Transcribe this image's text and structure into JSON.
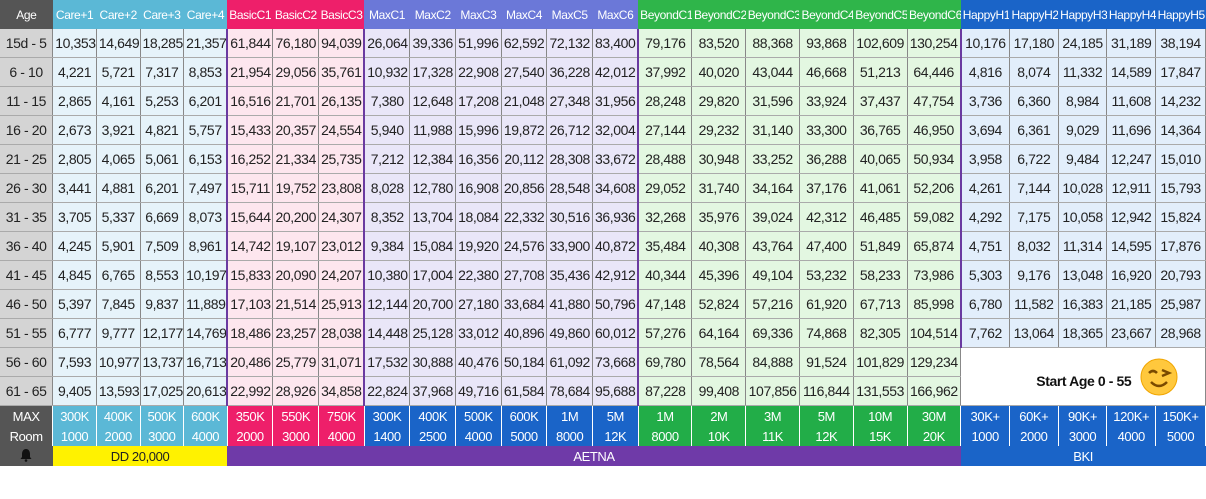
{
  "columns": [
    {
      "label": "Age",
      "group": "age"
    },
    {
      "label": "Care+1",
      "group": "care"
    },
    {
      "label": "Care+2",
      "group": "care"
    },
    {
      "label": "Care+3",
      "group": "care"
    },
    {
      "label": "Care+4",
      "group": "care"
    },
    {
      "label": "BasicC1",
      "group": "basic"
    },
    {
      "label": "BasicC2",
      "group": "basic"
    },
    {
      "label": "BasicC3",
      "group": "basic"
    },
    {
      "label": "MaxC1",
      "group": "max"
    },
    {
      "label": "MaxC2",
      "group": "max"
    },
    {
      "label": "MaxC3",
      "group": "max"
    },
    {
      "label": "MaxC4",
      "group": "max"
    },
    {
      "label": "MaxC5",
      "group": "max"
    },
    {
      "label": "MaxC6",
      "group": "max"
    },
    {
      "label": "BeyondC1",
      "group": "beyond"
    },
    {
      "label": "BeyondC2",
      "group": "beyond"
    },
    {
      "label": "BeyondC3",
      "group": "beyond"
    },
    {
      "label": "BeyondC4",
      "group": "beyond"
    },
    {
      "label": "BeyondC5",
      "group": "beyond"
    },
    {
      "label": "BeyondC6",
      "group": "beyond"
    },
    {
      "label": "HappyH1",
      "group": "happy"
    },
    {
      "label": "HappyH2",
      "group": "happy"
    },
    {
      "label": "HappyH3",
      "group": "happy"
    },
    {
      "label": "HappyH4",
      "group": "happy"
    },
    {
      "label": "HappyH5",
      "group": "happy"
    }
  ],
  "rows": [
    [
      "15d - 5",
      "10,353",
      "14,649",
      "18,285",
      "21,357",
      "61,844",
      "76,180",
      "94,039",
      "26,064",
      "39,336",
      "51,996",
      "62,592",
      "72,132",
      "83,400",
      "79,176",
      "83,520",
      "88,368",
      "93,868",
      "102,609",
      "130,254",
      "10,176",
      "17,180",
      "24,185",
      "31,189",
      "38,194"
    ],
    [
      "6 - 10",
      "4,221",
      "5,721",
      "7,317",
      "8,853",
      "21,954",
      "29,056",
      "35,761",
      "10,932",
      "17,328",
      "22,908",
      "27,540",
      "36,228",
      "42,012",
      "37,992",
      "40,020",
      "43,044",
      "46,668",
      "51,213",
      "64,446",
      "4,816",
      "8,074",
      "11,332",
      "14,589",
      "17,847"
    ],
    [
      "11 - 15",
      "2,865",
      "4,161",
      "5,253",
      "6,201",
      "16,516",
      "21,701",
      "26,135",
      "7,380",
      "12,648",
      "17,208",
      "21,048",
      "27,348",
      "31,956",
      "28,248",
      "29,820",
      "31,596",
      "33,924",
      "37,437",
      "47,754",
      "3,736",
      "6,360",
      "8,984",
      "11,608",
      "14,232"
    ],
    [
      "16 - 20",
      "2,673",
      "3,921",
      "4,821",
      "5,757",
      "15,433",
      "20,357",
      "24,554",
      "5,940",
      "11,988",
      "15,996",
      "19,872",
      "26,712",
      "32,004",
      "27,144",
      "29,232",
      "31,140",
      "33,300",
      "36,765",
      "46,950",
      "3,694",
      "6,361",
      "9,029",
      "11,696",
      "14,364"
    ],
    [
      "21 - 25",
      "2,805",
      "4,065",
      "5,061",
      "6,153",
      "16,252",
      "21,334",
      "25,735",
      "7,212",
      "12,384",
      "16,356",
      "20,112",
      "28,308",
      "33,672",
      "28,488",
      "30,948",
      "33,252",
      "36,288",
      "40,065",
      "50,934",
      "3,958",
      "6,722",
      "9,484",
      "12,247",
      "15,010"
    ],
    [
      "26 - 30",
      "3,441",
      "4,881",
      "6,201",
      "7,497",
      "15,711",
      "19,752",
      "23,808",
      "8,028",
      "12,780",
      "16,908",
      "20,856",
      "28,548",
      "34,608",
      "29,052",
      "31,740",
      "34,164",
      "37,176",
      "41,061",
      "52,206",
      "4,261",
      "7,144",
      "10,028",
      "12,911",
      "15,793"
    ],
    [
      "31 - 35",
      "3,705",
      "5,337",
      "6,669",
      "8,073",
      "15,644",
      "20,200",
      "24,307",
      "8,352",
      "13,704",
      "18,084",
      "22,332",
      "30,516",
      "36,936",
      "32,268",
      "35,976",
      "39,024",
      "42,312",
      "46,485",
      "59,082",
      "4,292",
      "7,175",
      "10,058",
      "12,942",
      "15,824"
    ],
    [
      "36 - 40",
      "4,245",
      "5,901",
      "7,509",
      "8,961",
      "14,742",
      "19,107",
      "23,012",
      "9,384",
      "15,084",
      "19,920",
      "24,576",
      "33,900",
      "40,872",
      "35,484",
      "40,308",
      "43,764",
      "47,400",
      "51,849",
      "65,874",
      "4,751",
      "8,032",
      "11,314",
      "14,595",
      "17,876"
    ],
    [
      "41 - 45",
      "4,845",
      "6,765",
      "8,553",
      "10,197",
      "15,833",
      "20,090",
      "24,207",
      "10,380",
      "17,004",
      "22,380",
      "27,708",
      "35,436",
      "42,912",
      "40,344",
      "45,396",
      "49,104",
      "53,232",
      "58,233",
      "73,986",
      "5,303",
      "9,176",
      "13,048",
      "16,920",
      "20,793"
    ],
    [
      "46 - 50",
      "5,397",
      "7,845",
      "9,837",
      "11,889",
      "17,103",
      "21,514",
      "25,913",
      "12,144",
      "20,700",
      "27,180",
      "33,684",
      "41,880",
      "50,796",
      "47,148",
      "52,824",
      "57,216",
      "61,920",
      "67,713",
      "85,998",
      "6,780",
      "11,582",
      "16,383",
      "21,185",
      "25,987"
    ],
    [
      "51 - 55",
      "6,777",
      "9,777",
      "12,177",
      "14,769",
      "18,486",
      "23,257",
      "28,038",
      "14,448",
      "25,128",
      "33,012",
      "40,896",
      "49,860",
      "60,012",
      "57,276",
      "64,164",
      "69,336",
      "74,868",
      "82,305",
      "104,514",
      "7,762",
      "13,064",
      "18,365",
      "23,667",
      "28,968"
    ],
    [
      "56 - 60",
      "7,593",
      "10,977",
      "13,737",
      "16,713",
      "20,486",
      "25,779",
      "31,071",
      "17,532",
      "30,888",
      "40,476",
      "50,184",
      "61,092",
      "73,668",
      "69,780",
      "78,564",
      "84,888",
      "91,524",
      "101,829",
      "129,234"
    ],
    [
      "61 - 65",
      "9,405",
      "13,593",
      "17,025",
      "20,613",
      "22,992",
      "28,926",
      "34,858",
      "22,824",
      "37,968",
      "49,716",
      "61,584",
      "78,684",
      "95,688",
      "87,228",
      "99,408",
      "107,856",
      "116,844",
      "131,553",
      "166,962"
    ]
  ],
  "note": {
    "text": "Start Age 0 - 55",
    "icon": "smiley-icon"
  },
  "max_row": [
    "MAX",
    "300K",
    "400K",
    "500K",
    "600K",
    "350K",
    "550K",
    "750K",
    "300K",
    "400K",
    "500K",
    "600K",
    "1M",
    "5M",
    "1M",
    "2M",
    "3M",
    "5M",
    "10M",
    "30M",
    "30K+",
    "60K+",
    "90K+",
    "120K+",
    "150K+"
  ],
  "room_row": [
    "Room",
    "1000",
    "2000",
    "3000",
    "4000",
    "2000",
    "3000",
    "4000",
    "1400",
    "2500",
    "4000",
    "5000",
    "8000",
    "12K",
    "8000",
    "10K",
    "11K",
    "12K",
    "15K",
    "20K",
    "1000",
    "2000",
    "3000",
    "4000",
    "5000"
  ],
  "bottom": {
    "bell_icon": "bell-icon",
    "deductible": "DD 20,000",
    "aetna": "AETNA",
    "bki": "BKI"
  },
  "colors": {
    "care": "#5bb8d6",
    "basic": "#ee1f6a",
    "max": "#6b78d8",
    "beyond": "#2fb54a",
    "happy": "#1a64c8",
    "aetna": "#6f3aa8",
    "deductible": "#fff200"
  }
}
